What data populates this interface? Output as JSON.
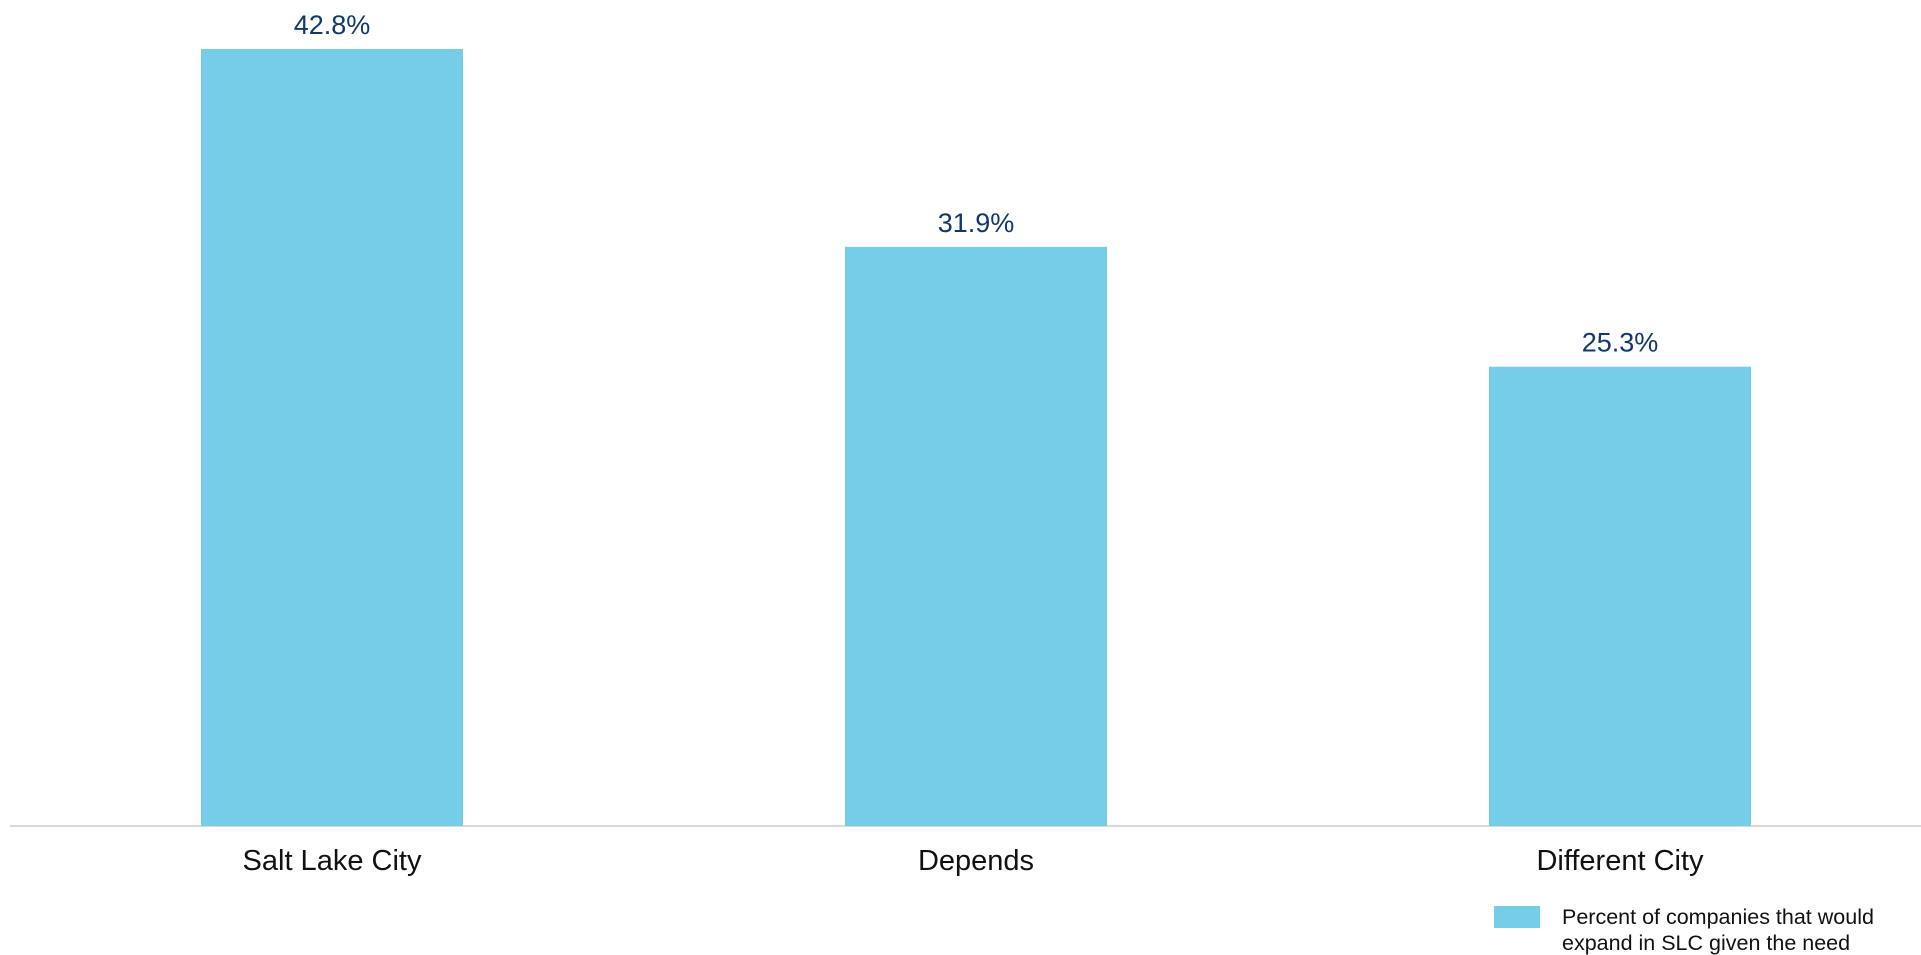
{
  "chart_data": {
    "type": "bar",
    "categories": [
      "Salt Lake City",
      "Depends",
      "Different City"
    ],
    "values": [
      42.8,
      31.9,
      25.3
    ],
    "data_labels": [
      "42.8%",
      "31.9%",
      "25.3%"
    ],
    "series": [
      {
        "name": "Percent of companies that would expand in SLC given the need",
        "name_lines": [
          "Percent of companies that would",
          "expand in SLC given the need"
        ],
        "values": [
          42.8,
          31.9,
          25.3
        ]
      }
    ],
    "title": "",
    "xlabel": "",
    "ylabel": "",
    "ylim": [
      0,
      42.8
    ],
    "grid": false,
    "legend_position": "bottom-right",
    "colors": {
      "bar": "#76cde8",
      "data_label": "#12376b",
      "tick_label": "#111111",
      "axis": "#d9d9d9"
    }
  }
}
